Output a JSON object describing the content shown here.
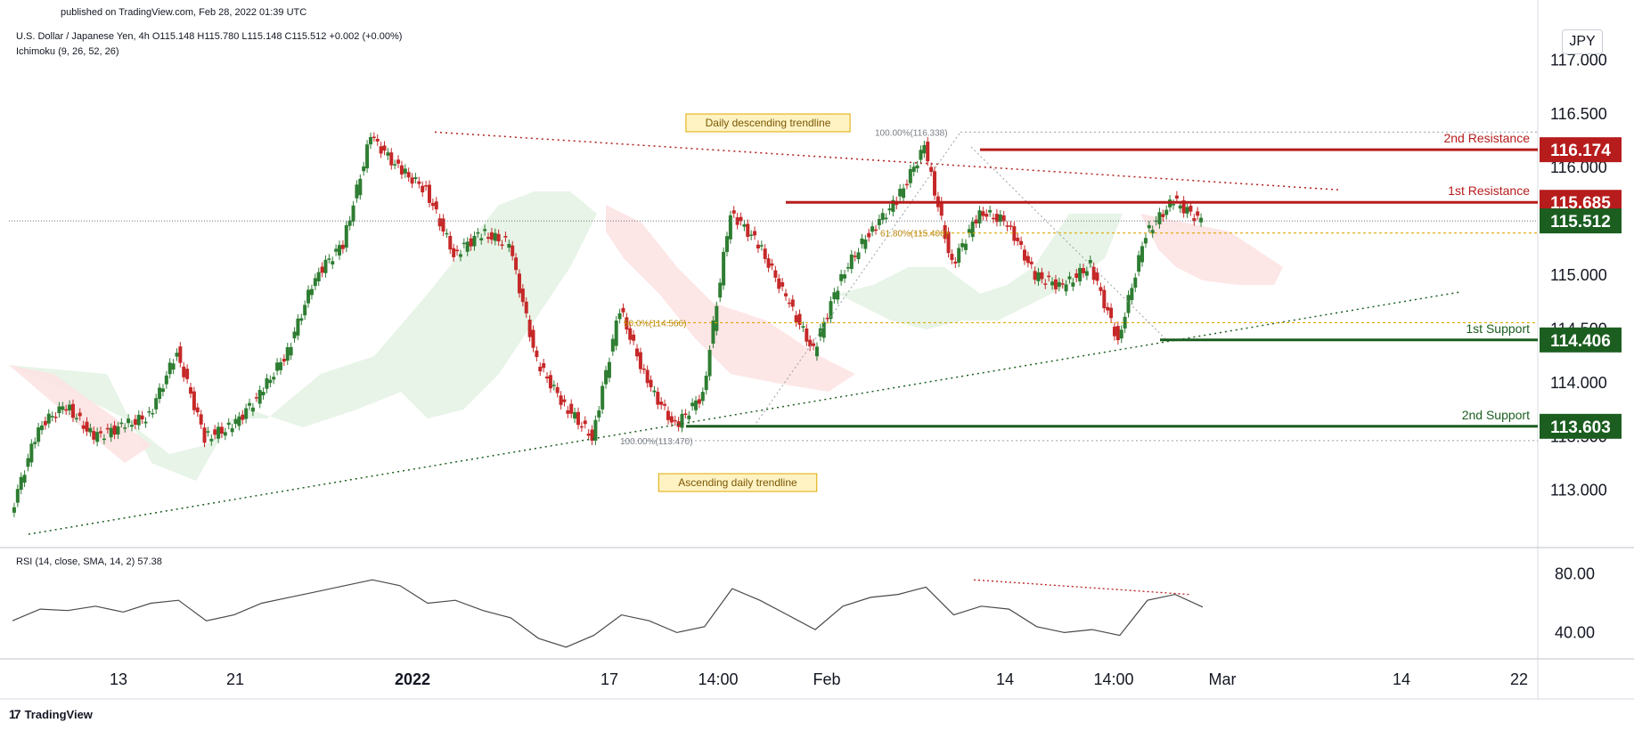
{
  "header": {
    "published": "published on TradingView.com, Feb 28, 2022 01:39 UTC",
    "symbol_line": "U.S. Dollar / Japanese Yen, 4h   O115.148  H115.780  L115.148  C115.512  +0.002 (+0.00%)",
    "indicator": "Ichimoku (9, 26, 52, 26)",
    "rsi_label": "RSI (14, close, SMA, 14, 2)  57.38",
    "currency_button": "JPY"
  },
  "footer": {
    "logo_text": "TradingView",
    "logo_mark": "17"
  },
  "colors": {
    "resistance": "#b71c1c",
    "support": "#1b5e20",
    "bull": "#2e7d32",
    "bear": "#c62828",
    "fib": "#e0a800",
    "kumo_bull": "#e3f2e3",
    "kumo_bear": "#fde3e3",
    "current": "#1b5e20"
  },
  "chart_data": [
    {
      "type": "line",
      "title": "U.S. Dollar / Japanese Yen, 4h",
      "y_axis_ticks": [
        "117.000",
        "116.500",
        "116.000",
        "115.000",
        "114.500",
        "114.000",
        "113.500",
        "113.000"
      ],
      "x_axis_ticks": [
        "13",
        "21",
        "2022",
        "17",
        "14:00",
        "Feb",
        "14",
        "14:00",
        "Mar",
        "14",
        "22"
      ],
      "ylim": [
        112.6,
        117.4
      ],
      "ohlc_header": {
        "open": 115.148,
        "high": 115.78,
        "low": 115.148,
        "close": 115.512,
        "change": "+0.002 (+0.00%)"
      },
      "series": [
        {
          "name": "",
          "x": [
            "Dec 6",
            "Dec 8",
            "Dec 10",
            "Dec 13",
            "Dec 15",
            "Dec 17",
            "Dec 19",
            "Dec 21",
            "Dec 23",
            "Dec 25",
            "Dec 27",
            "Dec 29",
            "Dec 31",
            "Jan 3",
            "Jan 4",
            "Jan 5",
            "Jan 7",
            "Jan 9",
            "Jan 11",
            "Jan 13",
            "Jan 15",
            "Jan 17",
            "Jan 19",
            "Jan 21",
            "Jan 23",
            "Jan 25",
            "Jan 27",
            "Jan 29",
            "Jan 31",
            "Feb 2",
            "Feb 4",
            "Feb 6",
            "Feb 8",
            "Feb 10",
            "Feb 11",
            "Feb 13",
            "Feb 15",
            "Feb 17",
            "Feb 19",
            "Feb 21",
            "Feb 23",
            "Feb 24",
            "Feb 25",
            "Feb 26"
          ],
          "values": [
            112.8,
            113.6,
            113.8,
            113.5,
            113.6,
            113.7,
            114.3,
            113.5,
            113.6,
            113.9,
            114.3,
            115.0,
            115.3,
            116.3,
            116.0,
            115.8,
            115.2,
            115.4,
            115.3,
            114.2,
            113.8,
            113.5,
            114.7,
            114.0,
            113.6,
            113.9,
            115.6,
            115.3,
            114.8,
            114.3,
            115.0,
            115.4,
            115.7,
            116.2,
            115.1,
            115.6,
            115.5,
            115.0,
            114.9,
            115.1,
            114.4,
            115.4,
            115.7,
            115.512
          ]
        }
      ]
    },
    {
      "type": "line",
      "title": "RSI (14, close, SMA, 14, 2)",
      "y_axis_ticks": [
        "80.00",
        "40.00"
      ],
      "ylim": [
        25,
        95
      ],
      "series": [
        {
          "name": "",
          "values": [
            48,
            56,
            55,
            58,
            54,
            60,
            62,
            48,
            52,
            60,
            64,
            68,
            72,
            76,
            72,
            60,
            62,
            55,
            50,
            36,
            30,
            38,
            52,
            48,
            40,
            44,
            70,
            62,
            52,
            42,
            58,
            64,
            66,
            71,
            52,
            58,
            56,
            44,
            40,
            42,
            38,
            62,
            66,
            57.38
          ]
        }
      ]
    }
  ],
  "annotations": {
    "daily_descending": "Daily descending trendline",
    "ascending_daily": "Ascending daily trendline",
    "fib_top": "100.00%(116.338)",
    "fib_618": "61.80%(115.400)",
    "fib_50": "50.0%(114.566)",
    "fib_bottom": "100.00%(113.470)"
  },
  "levels": [
    {
      "label": "2nd Resistance",
      "price": "116.174",
      "kind": "resistance"
    },
    {
      "label": "1st Resistance",
      "price": "115.685",
      "kind": "resistance"
    },
    {
      "label": "",
      "price": "115.512",
      "kind": "current"
    },
    {
      "label": "1st Support",
      "price": "114.406",
      "kind": "support"
    },
    {
      "label": "2nd Support",
      "price": "113.603",
      "kind": "support"
    }
  ]
}
